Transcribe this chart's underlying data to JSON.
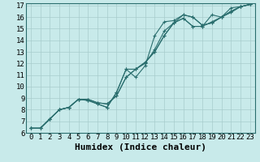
{
  "xlabel": "Humidex (Indice chaleur)",
  "xlim": [
    -0.5,
    23.5
  ],
  "ylim": [
    6,
    17.2
  ],
  "xticks": [
    0,
    1,
    2,
    3,
    4,
    5,
    6,
    7,
    8,
    9,
    10,
    11,
    12,
    13,
    14,
    15,
    16,
    17,
    18,
    19,
    20,
    21,
    22,
    23
  ],
  "yticks": [
    6,
    7,
    8,
    9,
    10,
    11,
    12,
    13,
    14,
    15,
    16,
    17
  ],
  "bg_color": "#c8eaea",
  "grid_color": "#a8cccc",
  "line_color": "#2a6e6e",
  "lines": [
    {
      "x": [
        0,
        1,
        2,
        3,
        4,
        5,
        6,
        7,
        8,
        9,
        10,
        11,
        12,
        13,
        14,
        15,
        16,
        17,
        18,
        19,
        20,
        21,
        22,
        23
      ],
      "y": [
        6.4,
        6.4,
        7.2,
        8.0,
        8.2,
        8.9,
        8.9,
        8.6,
        8.5,
        9.2,
        10.8,
        11.5,
        12.1,
        13.0,
        14.4,
        15.5,
        15.9,
        15.2,
        15.2,
        15.6,
        16.0,
        16.4,
        16.9,
        17.1
      ]
    },
    {
      "x": [
        0,
        1,
        2,
        3,
        4,
        5,
        6,
        7,
        8,
        9,
        10,
        11,
        12,
        13,
        14,
        15,
        16,
        17,
        18,
        19,
        20,
        21,
        22,
        23
      ],
      "y": [
        6.4,
        6.4,
        7.2,
        8.0,
        8.2,
        8.9,
        8.9,
        8.6,
        8.5,
        9.2,
        10.8,
        11.5,
        12.1,
        13.0,
        14.4,
        15.5,
        15.9,
        15.2,
        15.2,
        16.2,
        16.0,
        16.8,
        16.9,
        17.1
      ]
    },
    {
      "x": [
        0,
        1,
        2,
        3,
        4,
        5,
        6,
        7,
        8,
        9,
        10,
        11,
        12,
        13,
        14,
        15,
        16,
        17,
        18,
        19,
        20,
        21,
        22,
        23
      ],
      "y": [
        6.4,
        6.4,
        7.2,
        8.0,
        8.2,
        8.9,
        8.8,
        8.5,
        8.2,
        9.5,
        11.5,
        10.8,
        11.8,
        14.4,
        15.6,
        15.7,
        16.2,
        16.0,
        15.3,
        15.5,
        16.0,
        16.5,
        16.9,
        17.1
      ]
    },
    {
      "x": [
        0,
        1,
        2,
        3,
        4,
        5,
        6,
        7,
        8,
        9,
        10,
        11,
        12,
        13,
        14,
        15,
        16,
        17,
        18,
        19,
        20,
        21,
        22,
        23
      ],
      "y": [
        6.4,
        6.4,
        7.2,
        8.0,
        8.2,
        8.9,
        8.8,
        8.5,
        8.2,
        9.5,
        11.5,
        11.5,
        12.0,
        13.2,
        14.8,
        15.5,
        16.2,
        16.0,
        15.3,
        15.5,
        16.0,
        16.5,
        16.9,
        17.1
      ]
    }
  ],
  "font_family": "monospace",
  "xlabel_fontsize": 8,
  "tick_fontsize": 6.5
}
